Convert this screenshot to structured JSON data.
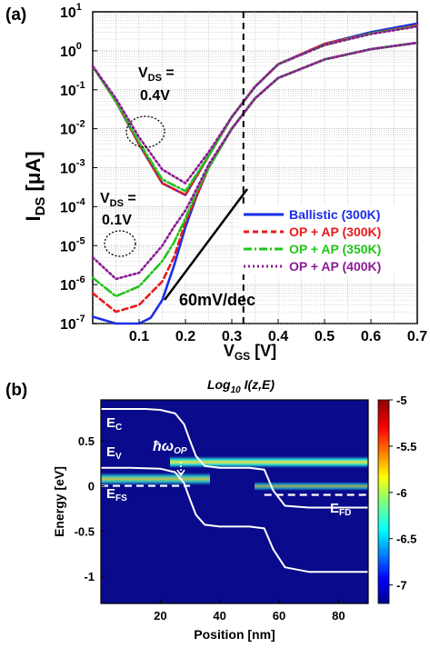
{
  "chart_data": [
    {
      "panel": "(a)",
      "type": "line",
      "xlabel": "V",
      "xlabel_sub": "GS",
      "xlabel_unit": "[V]",
      "ylabel": "I",
      "ylabel_sub": "DS",
      "ylabel_unit": "[μA]",
      "xlim": [
        0.0,
        0.7
      ],
      "ylim": [
        1e-07,
        10
      ],
      "yscale": "log",
      "xticks": [
        "0.1",
        "0.2",
        "0.3",
        "0.4",
        "0.5",
        "0.6",
        "0.7"
      ],
      "yticks": [
        {
          "base": "10",
          "exp": "1"
        },
        {
          "base": "10",
          "exp": "0"
        },
        {
          "base": "10",
          "exp": "-1"
        },
        {
          "base": "10",
          "exp": "-2"
        },
        {
          "base": "10",
          "exp": "-3"
        },
        {
          "base": "10",
          "exp": "-4"
        },
        {
          "base": "10",
          "exp": "-5"
        },
        {
          "base": "10",
          "exp": "-6"
        },
        {
          "base": "10",
          "exp": "-7"
        }
      ],
      "grid": true,
      "vline_x": 0.325,
      "legend_position": "lower-right",
      "series": [
        {
          "name": "Ballistic (300K)",
          "color": "#1a2ee6",
          "dash": "solid",
          "low": {
            "x": [
              0.0,
              0.05,
              0.1,
              0.125,
              0.15,
              0.175,
              0.2,
              0.225,
              0.25,
              0.3,
              0.35,
              0.4,
              0.5,
              0.6,
              0.7
            ],
            "y": [
              1.5e-07,
              1e-07,
              1e-07,
              1.4e-07,
              4e-07,
              3e-06,
              3e-05,
              0.0002,
              0.001,
              0.01,
              0.06,
              0.2,
              0.6,
              1.1,
              1.6
            ]
          },
          "high": {
            "x": [
              0.0,
              0.05,
              0.1,
              0.15,
              0.2,
              0.25,
              0.3,
              0.35,
              0.4,
              0.5,
              0.6,
              0.7
            ],
            "y": [
              0.4,
              0.05,
              0.004,
              0.0004,
              0.0002,
              0.002,
              0.02,
              0.12,
              0.45,
              1.5,
              3,
              5
            ]
          }
        },
        {
          "name": "OP + AP (300K)",
          "color": "#e81a1a",
          "dash": "6,4",
          "low": {
            "x": [
              0.0,
              0.05,
              0.1,
              0.15,
              0.175,
              0.2,
              0.225,
              0.25,
              0.3,
              0.35,
              0.4,
              0.5,
              0.6,
              0.7
            ],
            "y": [
              6e-07,
              2e-07,
              3e-07,
              1.2e-06,
              5e-06,
              4e-05,
              0.0002,
              0.001,
              0.01,
              0.06,
              0.2,
              0.6,
              1.1,
              1.6
            ]
          },
          "high": {
            "x": [
              0.0,
              0.05,
              0.1,
              0.15,
              0.2,
              0.25,
              0.3,
              0.35,
              0.4,
              0.5,
              0.6,
              0.7
            ],
            "y": [
              0.4,
              0.05,
              0.004,
              0.0004,
              0.0002,
              0.002,
              0.02,
              0.12,
              0.45,
              1.5,
              2.8,
              4.5
            ]
          }
        },
        {
          "name": "OP + AP (350K)",
          "color": "#22c41a",
          "dash": "9,3,2,3",
          "low": {
            "x": [
              0.0,
              0.05,
              0.1,
              0.15,
              0.175,
              0.2,
              0.225,
              0.25,
              0.3,
              0.35,
              0.4,
              0.5,
              0.6,
              0.7
            ],
            "y": [
              1.5e-06,
              5e-07,
              9e-07,
              4e-06,
              1.2e-05,
              5e-05,
              0.00025,
              0.001,
              0.01,
              0.06,
              0.2,
              0.6,
              1.1,
              1.6
            ]
          },
          "high": {
            "x": [
              0.0,
              0.05,
              0.1,
              0.15,
              0.2,
              0.25,
              0.3,
              0.35,
              0.4,
              0.5,
              0.6,
              0.7
            ],
            "y": [
              0.4,
              0.05,
              0.0045,
              0.0005,
              0.00025,
              0.002,
              0.02,
              0.12,
              0.45,
              1.4,
              2.8,
              4.3
            ]
          }
        },
        {
          "name": "OP + AP (400K)",
          "color": "#8c1a96",
          "dash": "2,3",
          "low": {
            "x": [
              0.0,
              0.05,
              0.1,
              0.15,
              0.175,
              0.2,
              0.225,
              0.25,
              0.3,
              0.35,
              0.4,
              0.5,
              0.6,
              0.7
            ],
            "y": [
              5e-06,
              1.4e-06,
              2e-06,
              1e-05,
              3e-05,
              8e-05,
              0.0003,
              0.0012,
              0.01,
              0.06,
              0.2,
              0.6,
              1.1,
              1.6
            ]
          },
          "high": {
            "x": [
              0.0,
              0.05,
              0.1,
              0.15,
              0.2,
              0.25,
              0.3,
              0.35,
              0.4,
              0.5,
              0.6,
              0.7
            ],
            "y": [
              0.4,
              0.06,
              0.006,
              0.0009,
              0.0004,
              0.0025,
              0.02,
              0.12,
              0.45,
              1.4,
              2.7,
              4.2
            ]
          }
        }
      ],
      "annotations": {
        "vds_high": {
          "label": "V",
          "sub": "DS",
          "eq": " =",
          "value": "0.4V"
        },
        "vds_low": {
          "label": "V",
          "sub": "DS",
          "eq": " =",
          "value": "0.1V"
        },
        "slope_label": "60mV/dec"
      }
    },
    {
      "panel": "(b)",
      "type": "heatmap",
      "title": "Log",
      "title_sub": "10",
      "title_rest": " I(z,E)",
      "xlabel": "Position [nm]",
      "ylabel": "Energy [eV]",
      "xlim": [
        0,
        90
      ],
      "ylim": [
        -1.3,
        0.95
      ],
      "xticks": [
        "20",
        "40",
        "60",
        "80"
      ],
      "yticks": [
        "0.5",
        "0",
        "-0.5",
        "-1"
      ],
      "colorbar_ticks": [
        "-5",
        "-5.5",
        "-6",
        "-6.5",
        "-7"
      ],
      "colorbar_range": [
        -7.2,
        -5
      ],
      "band_edges": {
        "ec": {
          "x": [
            0,
            10,
            15,
            20,
            25,
            28,
            30,
            32,
            35,
            40,
            50,
            55,
            58,
            62,
            70,
            80,
            90
          ],
          "y": [
            0.85,
            0.85,
            0.85,
            0.84,
            0.8,
            0.68,
            0.5,
            0.33,
            0.22,
            0.2,
            0.2,
            0.18,
            -0.05,
            -0.22,
            -0.24,
            -0.24,
            -0.24
          ]
        },
        "ev": {
          "x": [
            0,
            10,
            20,
            25,
            28,
            30,
            32,
            35,
            40,
            50,
            55,
            58,
            62,
            70,
            80,
            90
          ],
          "y": [
            0.2,
            0.2,
            0.19,
            0.15,
            0.03,
            -0.15,
            -0.32,
            -0.43,
            -0.45,
            -0.45,
            -0.47,
            -0.7,
            -0.9,
            -0.95,
            -0.95,
            -0.95
          ]
        },
        "efs": {
          "x": [
            0,
            30
          ],
          "y": [
            0,
            0
          ]
        },
        "efd": {
          "x": [
            55,
            90
          ],
          "y": [
            -0.1,
            -0.1
          ]
        }
      },
      "labels": {
        "ec": {
          "main": "E",
          "sub": "C"
        },
        "ev": {
          "main": "E",
          "sub": "V"
        },
        "efs": {
          "main": "E",
          "sub": "FS"
        },
        "efd": {
          "main": "E",
          "sub": "FD"
        },
        "phonon": {
          "main": "ħω",
          "sub": "OP"
        }
      }
    }
  ]
}
